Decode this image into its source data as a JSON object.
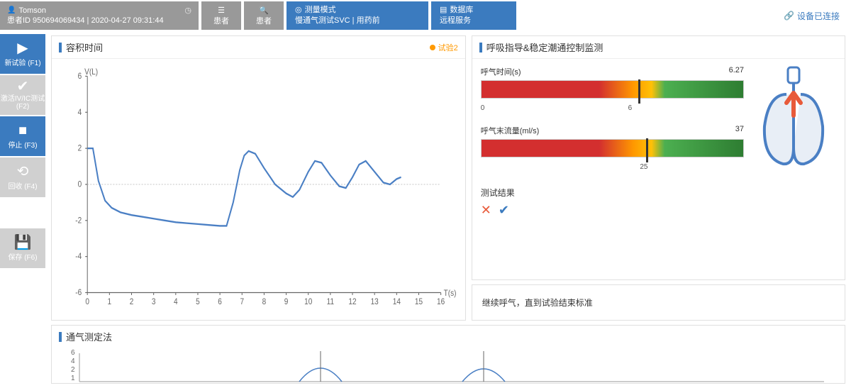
{
  "header": {
    "patient_name": "Tomson",
    "patient_id_label": "患者ID 950694069434 | 2020-04-27 09:31:44",
    "patient_btn1": "患者",
    "patient_btn2": "患者",
    "mode_title": "测量模式",
    "mode_sub": "慢通气测试SVC | 用药前",
    "db_title": "数据库",
    "db_sub": "远程服务",
    "link_text": "设备已连接"
  },
  "sidebar": {
    "btn1": "新试验 (F1)",
    "btn2": "激活IV/IC测试(F2)",
    "btn3": "停止 (F3)",
    "btn4": "回收 (F4)",
    "btn5": "保存 (F6)"
  },
  "chart": {
    "title": "容积时间",
    "legend": "试验2",
    "ylabel": "V(L)",
    "xlabel": "T(s)",
    "ylim": [
      -6,
      6
    ],
    "ytick_step": 2,
    "xlim": [
      0,
      16
    ],
    "xtick_step": 1,
    "line_color": "#4a7fc4",
    "grid_color": "#dddddd",
    "points": [
      [
        0,
        2.0
      ],
      [
        0.25,
        2.0
      ],
      [
        0.5,
        0.2
      ],
      [
        0.8,
        -0.9
      ],
      [
        1.1,
        -1.3
      ],
      [
        1.5,
        -1.55
      ],
      [
        2.0,
        -1.7
      ],
      [
        2.5,
        -1.8
      ],
      [
        3.0,
        -1.9
      ],
      [
        3.5,
        -2.0
      ],
      [
        4.0,
        -2.1
      ],
      [
        4.5,
        -2.15
      ],
      [
        5.0,
        -2.2
      ],
      [
        5.5,
        -2.25
      ],
      [
        6.0,
        -2.3
      ],
      [
        6.3,
        -2.3
      ],
      [
        6.6,
        -1.0
      ],
      [
        6.9,
        0.8
      ],
      [
        7.1,
        1.6
      ],
      [
        7.3,
        1.85
      ],
      [
        7.6,
        1.7
      ],
      [
        8.0,
        0.9
      ],
      [
        8.5,
        0.0
      ],
      [
        9.0,
        -0.5
      ],
      [
        9.3,
        -0.7
      ],
      [
        9.6,
        -0.3
      ],
      [
        10.0,
        0.7
      ],
      [
        10.3,
        1.3
      ],
      [
        10.6,
        1.2
      ],
      [
        11.0,
        0.5
      ],
      [
        11.4,
        -0.1
      ],
      [
        11.7,
        -0.2
      ],
      [
        12.0,
        0.4
      ],
      [
        12.3,
        1.1
      ],
      [
        12.6,
        1.3
      ],
      [
        13.0,
        0.7
      ],
      [
        13.4,
        0.1
      ],
      [
        13.7,
        0.0
      ],
      [
        14.0,
        0.3
      ],
      [
        14.2,
        0.4
      ]
    ]
  },
  "guide": {
    "title": "呼吸指导&稳定潮通控制监测",
    "bar1": {
      "label": "呼气时间(s)",
      "value": "6.27",
      "scale_lo": "0",
      "scale_hi": "6",
      "tick_pct": 60,
      "grad_pct": 100
    },
    "bar2": {
      "label": "呼气末流量(ml/s)",
      "value": "37",
      "scale_mid": "25",
      "tick_pct": 63,
      "grad_pct": 100
    },
    "result_label": "测试结果",
    "lung_arrow_color": "#e85a3a",
    "lung_stroke": "#4a7fc4"
  },
  "msg": {
    "text": "继续呼气，直到试验结束标准"
  },
  "bottom": {
    "title": "通气测定法",
    "ticks": [
      "6",
      "4",
      "2",
      "1"
    ]
  },
  "colors": {
    "primary": "#3b7bbf",
    "gray": "#999999",
    "orange": "#ff9900",
    "x_red": "#e85a3a",
    "check_blue": "#3b7bbf"
  }
}
